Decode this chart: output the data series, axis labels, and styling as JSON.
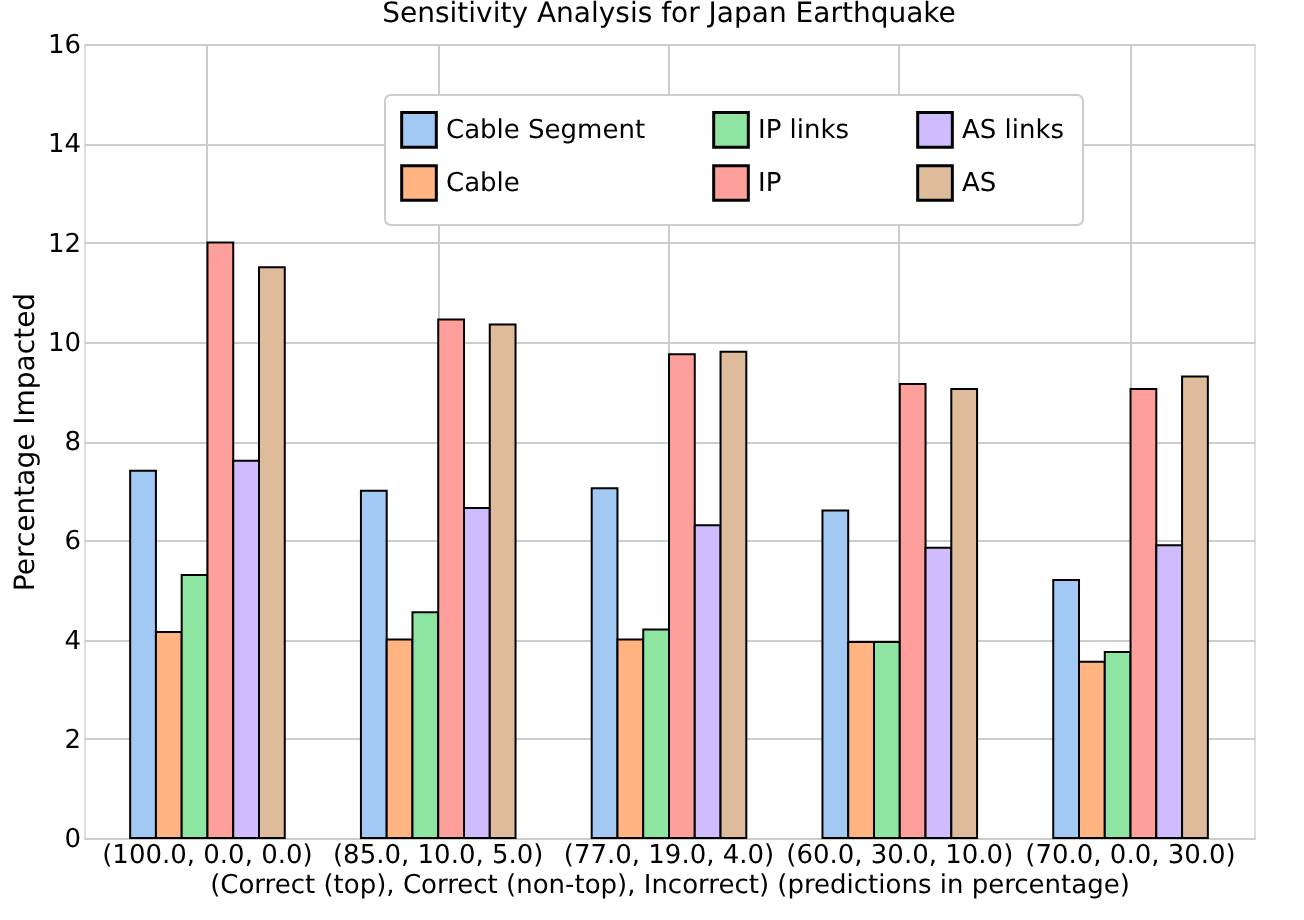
{
  "chart_data": {
    "type": "bar",
    "title": "Sensitivity Analysis for Japan Earthquake",
    "xlabel": "(Correct (top), Correct (non-top), Incorrect) (predictions in percentage)",
    "ylabel": "Percentage Impacted",
    "categories": [
      "(100.0, 0.0, 0.0)",
      "(85.0, 10.0, 5.0)",
      "(77.0, 19.0, 4.0)",
      "(60.0, 30.0, 10.0)",
      "(70.0, 0.0, 30.0)"
    ],
    "series": [
      {
        "name": "Cable Segment",
        "color": "#a1c9f4",
        "values": [
          7.4,
          7.0,
          7.05,
          6.6,
          5.2
        ]
      },
      {
        "name": "Cable",
        "color": "#ffb482",
        "values": [
          4.15,
          4.0,
          4.0,
          3.95,
          3.55
        ]
      },
      {
        "name": "IP links",
        "color": "#8de5a1",
        "values": [
          5.3,
          4.55,
          4.2,
          3.95,
          3.75
        ]
      },
      {
        "name": "IP",
        "color": "#ff9f9b",
        "values": [
          12.0,
          10.45,
          9.75,
          9.15,
          9.05
        ]
      },
      {
        "name": "AS links",
        "color": "#d0bbff",
        "values": [
          7.6,
          6.65,
          6.3,
          5.85,
          5.9
        ]
      },
      {
        "name": "AS",
        "color": "#debb9b",
        "values": [
          11.5,
          10.35,
          9.8,
          9.05,
          9.3
        ]
      }
    ],
    "ylim": [
      0,
      16
    ],
    "yticks": [
      0,
      2,
      4,
      6,
      8,
      10,
      12,
      14,
      16
    ],
    "grid": true,
    "legend": "top"
  }
}
